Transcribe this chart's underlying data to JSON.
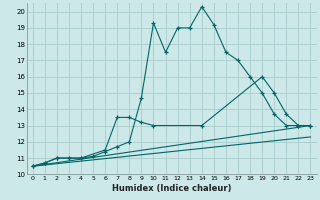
{
  "xlabel": "Humidex (Indice chaleur)",
  "bg_color": "#cce8e8",
  "grid_color": "#aacccc",
  "line_color": "#006666",
  "xlim": [
    -0.5,
    23.5
  ],
  "ylim": [
    10,
    20.5
  ],
  "xticks": [
    0,
    1,
    2,
    3,
    4,
    5,
    6,
    7,
    8,
    9,
    10,
    11,
    12,
    13,
    14,
    15,
    16,
    17,
    18,
    19,
    20,
    21,
    22,
    23
  ],
  "yticks": [
    10,
    11,
    12,
    13,
    14,
    15,
    16,
    17,
    18,
    19,
    20
  ],
  "line1_x": [
    0,
    1,
    2,
    3,
    4,
    5,
    6,
    7,
    8,
    9,
    10,
    11,
    12,
    13,
    14,
    15,
    16,
    17,
    18,
    19,
    20,
    21,
    22,
    23
  ],
  "line1_y": [
    10.5,
    10.7,
    11.0,
    11.0,
    11.0,
    11.1,
    11.4,
    11.7,
    12.0,
    14.7,
    19.3,
    17.5,
    19.0,
    19.0,
    20.3,
    19.2,
    17.5,
    17.0,
    16.0,
    15.0,
    13.7,
    13.0,
    13.0,
    13.0
  ],
  "line2_x": [
    0,
    1,
    2,
    3,
    4,
    6,
    7,
    8,
    9,
    10,
    14,
    19,
    20,
    21,
    22,
    23
  ],
  "line2_y": [
    10.5,
    10.7,
    11.0,
    11.0,
    11.0,
    11.5,
    13.5,
    13.5,
    13.2,
    13.0,
    13.0,
    16.0,
    15.0,
    13.7,
    13.0,
    13.0
  ],
  "line3_x": [
    0,
    23
  ],
  "line3_y": [
    10.5,
    13.0
  ],
  "line4_x": [
    0,
    23
  ],
  "line4_y": [
    10.5,
    12.3
  ]
}
